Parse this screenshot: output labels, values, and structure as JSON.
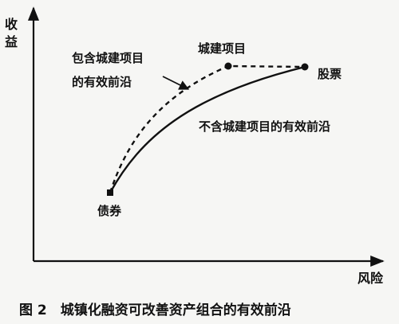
{
  "chart_data": {
    "type": "line",
    "y_axis_label": "收益",
    "x_axis_label": "风险",
    "series": [
      {
        "name": "包含城建项目的有效前沿",
        "style": "dashed",
        "points_labeled": [
          "债券",
          "城建项目",
          "股票"
        ]
      },
      {
        "name": "不含城建项目的有效前沿",
        "style": "solid",
        "points_labeled": [
          "债券",
          "股票"
        ]
      }
    ],
    "point_labels": {
      "bonds": "债券",
      "city_project": "城建项目",
      "stocks": "股票"
    },
    "annotations": {
      "with_frontier_line1": "包含城建项目",
      "with_frontier_line2": "的有效前沿",
      "without_frontier": "不含城建项目的有效前沿"
    },
    "grid": false,
    "legend": "none"
  },
  "caption": "图 2　城镇化融资可改善资产组合的有效前沿",
  "colors": {
    "ink": "#111111",
    "background": "#f6f6f4"
  }
}
